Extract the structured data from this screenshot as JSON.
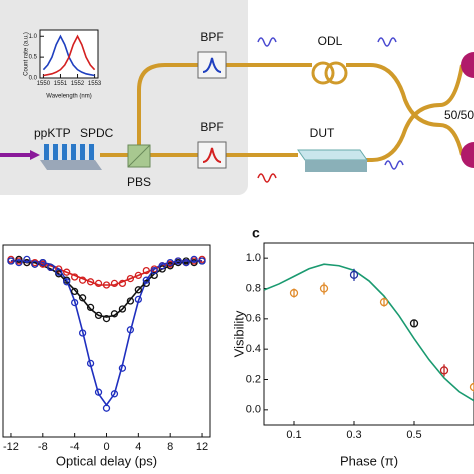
{
  "diagram": {
    "crystal": "ppKTP",
    "process": "SPDC",
    "splitter": "PBS",
    "filter_top": "BPF",
    "filter_bottom": "BPF",
    "delay": "ODL",
    "device": "DUT",
    "coupler": "50/50"
  },
  "panel_label": "c",
  "chart_data": [
    {
      "type": "line",
      "x_label": "Wavelength (nm)",
      "y_label": "Count rate (a.u.)",
      "x": [
        1550,
        1550.25,
        1550.5,
        1550.75,
        1551,
        1551.25,
        1551.5,
        1551.75,
        1552,
        1552.25,
        1552.5,
        1552.75,
        1553
      ],
      "series": [
        {
          "color": "#1f3fbf",
          "values": [
            0.2,
            0.31,
            0.5,
            0.8,
            1,
            0.8,
            0.5,
            0.31,
            0.2,
            0.14,
            0.1,
            0.08,
            0.06
          ]
        },
        {
          "color": "#d42020",
          "values": [
            0.06,
            0.08,
            0.1,
            0.14,
            0.2,
            0.31,
            0.5,
            0.8,
            1,
            0.8,
            0.5,
            0.31,
            0.2
          ]
        }
      ],
      "xlim": [
        1549.8,
        1553.2
      ],
      "ylim": [
        0,
        1.15
      ],
      "xticks": [
        1550,
        1551,
        1552,
        1553
      ],
      "yticks": [
        {
          "value": 0,
          "label": "0.0"
        },
        0.5,
        {
          "value": 1,
          "label": "1.0"
        }
      ]
    },
    {
      "type": "scatter",
      "x_label": "Optical delay (ps)",
      "x": [
        -12,
        -11,
        -10,
        -9,
        -8,
        -7,
        -6,
        -5,
        -4,
        -3,
        -2,
        -1,
        0,
        1,
        2,
        3,
        4,
        5,
        6,
        7,
        8,
        9,
        10,
        11,
        12
      ],
      "series": [
        {
          "color": "#d42020",
          "values": [
            1.01,
            1.0,
            0.99,
            0.99,
            0.98,
            0.96,
            0.95,
            0.93,
            0.9,
            0.88,
            0.87,
            0.86,
            0.85,
            0.86,
            0.86,
            0.89,
            0.91,
            0.94,
            0.95,
            0.97,
            0.98,
            1.0,
            0.99,
            1.0,
            1.01
          ]
        },
        {
          "color": "#111111",
          "values": [
            1.0,
            1.01,
            0.99,
            0.98,
            0.99,
            0.96,
            0.92,
            0.88,
            0.81,
            0.77,
            0.71,
            0.66,
            0.64,
            0.67,
            0.7,
            0.75,
            0.82,
            0.86,
            0.91,
            0.95,
            0.97,
            0.99,
            1.0,
            0.99,
            1.0
          ]
        },
        {
          "color": "#1f2fbf",
          "values": [
            1.0,
            0.99,
            1.01,
            0.98,
            0.99,
            0.96,
            0.93,
            0.87,
            0.74,
            0.55,
            0.36,
            0.18,
            0.08,
            0.17,
            0.33,
            0.57,
            0.76,
            0.88,
            0.94,
            0.97,
            0.99,
            1.0,
            0.99,
            1.01,
            1.0
          ]
        }
      ],
      "fits": [
        {
          "color": "#d42020",
          "values": [
            1,
            1,
            0.99,
            0.99,
            0.98,
            0.97,
            0.95,
            0.93,
            0.91,
            0.89,
            0.87,
            0.85,
            0.85,
            0.85,
            0.87,
            0.89,
            0.91,
            0.93,
            0.95,
            0.97,
            0.98,
            0.99,
            0.99,
            1,
            1
          ]
        },
        {
          "color": "#111111",
          "values": [
            1,
            1,
            0.99,
            0.99,
            0.97,
            0.95,
            0.92,
            0.87,
            0.82,
            0.76,
            0.7,
            0.66,
            0.65,
            0.66,
            0.7,
            0.76,
            0.82,
            0.87,
            0.92,
            0.95,
            0.97,
            0.99,
            0.99,
            1,
            1
          ]
        },
        {
          "color": "#1f2fbf",
          "values": [
            1,
            1,
            1,
            1,
            0.99,
            0.98,
            0.95,
            0.88,
            0.75,
            0.56,
            0.35,
            0.17,
            0.1,
            0.17,
            0.35,
            0.56,
            0.75,
            0.88,
            0.95,
            0.98,
            0.99,
            1,
            1,
            1,
            1
          ]
        }
      ],
      "xlim": [
        -13,
        13
      ],
      "ylim": [
        -0.1,
        1.1
      ],
      "xticks": [
        -12,
        -8,
        -4,
        0,
        4,
        8,
        12
      ]
    },
    {
      "type": "scatter",
      "x_label": "Phase (π)",
      "y_label": "Visibility",
      "series": [
        {
          "color": "#e08a2a",
          "x": [
            0.1,
            0.2,
            0.4,
            0.7
          ],
          "values": [
            0.77,
            0.8,
            0.71,
            0.15
          ],
          "errors": [
            0.03,
            0.04,
            0.03,
            0.03
          ]
        },
        {
          "color": "#1f2fa0",
          "x": [
            0.3
          ],
          "values": [
            0.89
          ],
          "errors": [
            0.04
          ]
        },
        {
          "color": "#111111",
          "x": [
            0.5
          ],
          "values": [
            0.57
          ],
          "errors": [
            0.02
          ]
        },
        {
          "color": "#c02020",
          "x": [
            0.6
          ],
          "values": [
            0.26
          ],
          "errors": [
            0.04
          ]
        }
      ],
      "fits": [
        {
          "color": "#1a9a70",
          "x": [
            0,
            0.05,
            0.1,
            0.15,
            0.2,
            0.25,
            0.3,
            0.35,
            0.4,
            0.45,
            0.5,
            0.55,
            0.6,
            0.65,
            0.7
          ],
          "values": [
            0.79,
            0.83,
            0.88,
            0.93,
            0.96,
            0.95,
            0.92,
            0.85,
            0.75,
            0.62,
            0.47,
            0.33,
            0.21,
            0.12,
            0.06
          ]
        }
      ],
      "xlim": [
        0,
        0.7
      ],
      "ylim": [
        -0.1,
        1.1
      ],
      "xticks": [
        0.1,
        0.3,
        0.5
      ],
      "yticks": [
        {
          "value": 0,
          "label": "0.0"
        },
        0.2,
        0.4,
        0.6,
        0.8,
        {
          "value": 1,
          "label": "1.0"
        }
      ]
    }
  ]
}
